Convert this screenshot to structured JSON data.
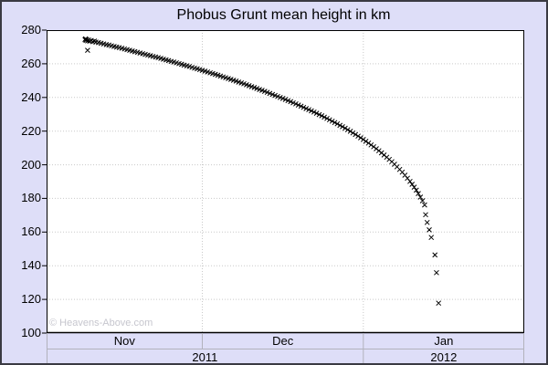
{
  "window_title": "Phobus Grunt mean height in km",
  "watermark": "© Heavens-Above.com",
  "colors": {
    "background": "#dedef8",
    "plot_background": "#ffffff",
    "grid": "#c9c9c9",
    "axis": "#000000",
    "marker": "#000000",
    "band_border": "#b2b2bc",
    "watermark": "#c6c6ce",
    "window_border": "#3a3a42"
  },
  "chart_data": {
    "type": "scatter",
    "title": "Phobus Grunt mean height in km",
    "xlabel": "",
    "ylabel": "mean height in km",
    "marker": "x",
    "grid": "dotted",
    "legend": "none",
    "ylim": [
      100,
      280
    ],
    "yticks": [
      280,
      260,
      240,
      220,
      200,
      180,
      160,
      140,
      120,
      100
    ],
    "x_unit": "days since 2011-11-01",
    "x_total_days": 92,
    "x_gridline_days": [
      30,
      61
    ],
    "month_cells": [
      {
        "label": "Nov",
        "start": 0,
        "end": 30
      },
      {
        "label": "Dec",
        "start": 30,
        "end": 61
      },
      {
        "label": "Jan",
        "start": 61,
        "end": 92
      }
    ],
    "year_cells": [
      {
        "label": "2011",
        "start": 0,
        "end": 61
      },
      {
        "label": "2012",
        "start": 61,
        "end": 92
      }
    ],
    "points": [
      [
        7.4,
        274.3
      ],
      [
        7.5,
        274.8
      ],
      [
        7.6,
        273.9
      ],
      [
        7.7,
        274.4
      ],
      [
        7.9,
        273.6
      ],
      [
        7.9,
        268.0
      ],
      [
        8.1,
        274.1
      ],
      [
        8.3,
        273.4
      ],
      [
        8.6,
        273.8
      ],
      [
        8.9,
        273.1
      ],
      [
        9.2,
        273.5
      ],
      [
        9.5,
        272.9
      ],
      [
        10,
        272.6
      ],
      [
        10.5,
        272.2
      ],
      [
        11,
        271.8
      ],
      [
        11.5,
        271.4
      ],
      [
        12,
        271.1
      ],
      [
        12.5,
        270.7
      ],
      [
        13,
        270.3
      ],
      [
        13.5,
        269.9
      ],
      [
        14,
        269.6
      ],
      [
        14.5,
        269.2
      ],
      [
        15,
        268.8
      ],
      [
        15.5,
        268.4
      ],
      [
        16,
        268.0
      ],
      [
        16.5,
        267.6
      ],
      [
        17,
        267.2
      ],
      [
        17.5,
        266.8
      ],
      [
        18,
        266.4
      ],
      [
        18.5,
        266.0
      ],
      [
        19,
        265.6
      ],
      [
        19.5,
        265.2
      ],
      [
        20,
        264.8
      ],
      [
        20.5,
        264.4
      ],
      [
        21,
        264.0
      ],
      [
        21.5,
        263.6
      ],
      [
        22,
        263.2
      ],
      [
        22.5,
        262.7
      ],
      [
        23,
        262.3
      ],
      [
        23.5,
        261.9
      ],
      [
        24,
        261.4
      ],
      [
        24.5,
        261.0
      ],
      [
        25,
        260.6
      ],
      [
        25.5,
        260.1
      ],
      [
        26,
        259.7
      ],
      [
        26.5,
        259.2
      ],
      [
        27,
        258.8
      ],
      [
        27.5,
        258.4
      ],
      [
        28,
        257.9
      ],
      [
        28.5,
        257.4
      ],
      [
        29,
        257.0
      ],
      [
        29.5,
        256.5
      ],
      [
        30,
        256.1
      ],
      [
        30.5,
        255.6
      ],
      [
        31,
        255.1
      ],
      [
        31.5,
        254.6
      ],
      [
        32,
        254.2
      ],
      [
        32.5,
        253.7
      ],
      [
        33,
        253.2
      ],
      [
        33.5,
        252.7
      ],
      [
        34,
        252.2
      ],
      [
        34.5,
        251.7
      ],
      [
        35,
        251.2
      ],
      [
        35.5,
        250.7
      ],
      [
        36,
        250.2
      ],
      [
        36.5,
        249.7
      ],
      [
        37,
        249.1
      ],
      [
        37.5,
        248.6
      ],
      [
        38,
        248.1
      ],
      [
        38.5,
        247.5
      ],
      [
        39,
        247.0
      ],
      [
        39.5,
        246.4
      ],
      [
        40,
        245.9
      ],
      [
        40.5,
        245.3
      ],
      [
        41,
        244.7
      ],
      [
        41.5,
        244.2
      ],
      [
        42,
        243.6
      ],
      [
        42.5,
        243.0
      ],
      [
        43,
        242.4
      ],
      [
        43.5,
        241.8
      ],
      [
        44,
        241.2
      ],
      [
        44.5,
        240.6
      ],
      [
        45,
        240.0
      ],
      [
        45.5,
        239.4
      ],
      [
        46,
        238.8
      ],
      [
        46.5,
        238.1
      ],
      [
        47,
        237.5
      ],
      [
        47.5,
        236.8
      ],
      [
        48,
        236.2
      ],
      [
        48.5,
        235.5
      ],
      [
        49,
        234.8
      ],
      [
        49.5,
        234.1
      ],
      [
        50,
        233.4
      ],
      [
        50.5,
        232.7
      ],
      [
        51,
        232.0
      ],
      [
        51.5,
        231.3
      ],
      [
        52,
        230.6
      ],
      [
        52.5,
        229.8
      ],
      [
        53,
        229.1
      ],
      [
        53.5,
        228.3
      ],
      [
        54,
        227.5
      ],
      [
        54.5,
        226.7
      ],
      [
        55,
        225.9
      ],
      [
        55.5,
        225.1
      ],
      [
        56,
        224.3
      ],
      [
        56.5,
        223.4
      ],
      [
        57,
        222.6
      ],
      [
        57.5,
        221.7
      ],
      [
        58,
        220.8
      ],
      [
        58.5,
        219.9
      ],
      [
        59,
        218.9
      ],
      [
        59.5,
        218.0
      ],
      [
        60,
        217.0
      ],
      [
        60.5,
        216.0
      ],
      [
        61,
        215.0
      ],
      [
        61.5,
        213.9
      ],
      [
        62,
        212.9
      ],
      [
        62.5,
        211.8
      ],
      [
        63,
        210.7
      ],
      [
        63.5,
        209.5
      ],
      [
        64,
        208.3
      ],
      [
        64.5,
        207.1
      ],
      [
        65,
        205.8
      ],
      [
        65.5,
        204.5
      ],
      [
        66,
        203.2
      ],
      [
        66.5,
        201.8
      ],
      [
        67,
        200.3
      ],
      [
        67.5,
        198.8
      ],
      [
        68,
        197.2
      ],
      [
        68.5,
        195.6
      ],
      [
        69,
        193.8
      ],
      [
        69.5,
        192.0
      ],
      [
        70,
        190.1
      ],
      [
        70.4,
        188.4
      ],
      [
        70.8,
        186.7
      ],
      [
        71.2,
        184.9
      ],
      [
        71.6,
        182.9
      ],
      [
        72,
        180.8
      ],
      [
        72.4,
        178.6
      ],
      [
        72.8,
        176.1
      ],
      [
        73,
        170.3
      ],
      [
        73.3,
        165.7
      ],
      [
        73.7,
        161.3
      ],
      [
        74.1,
        156.8
      ],
      [
        74.8,
        146.4
      ],
      [
        75.1,
        135.9
      ],
      [
        75.5,
        117.8
      ]
    ]
  }
}
